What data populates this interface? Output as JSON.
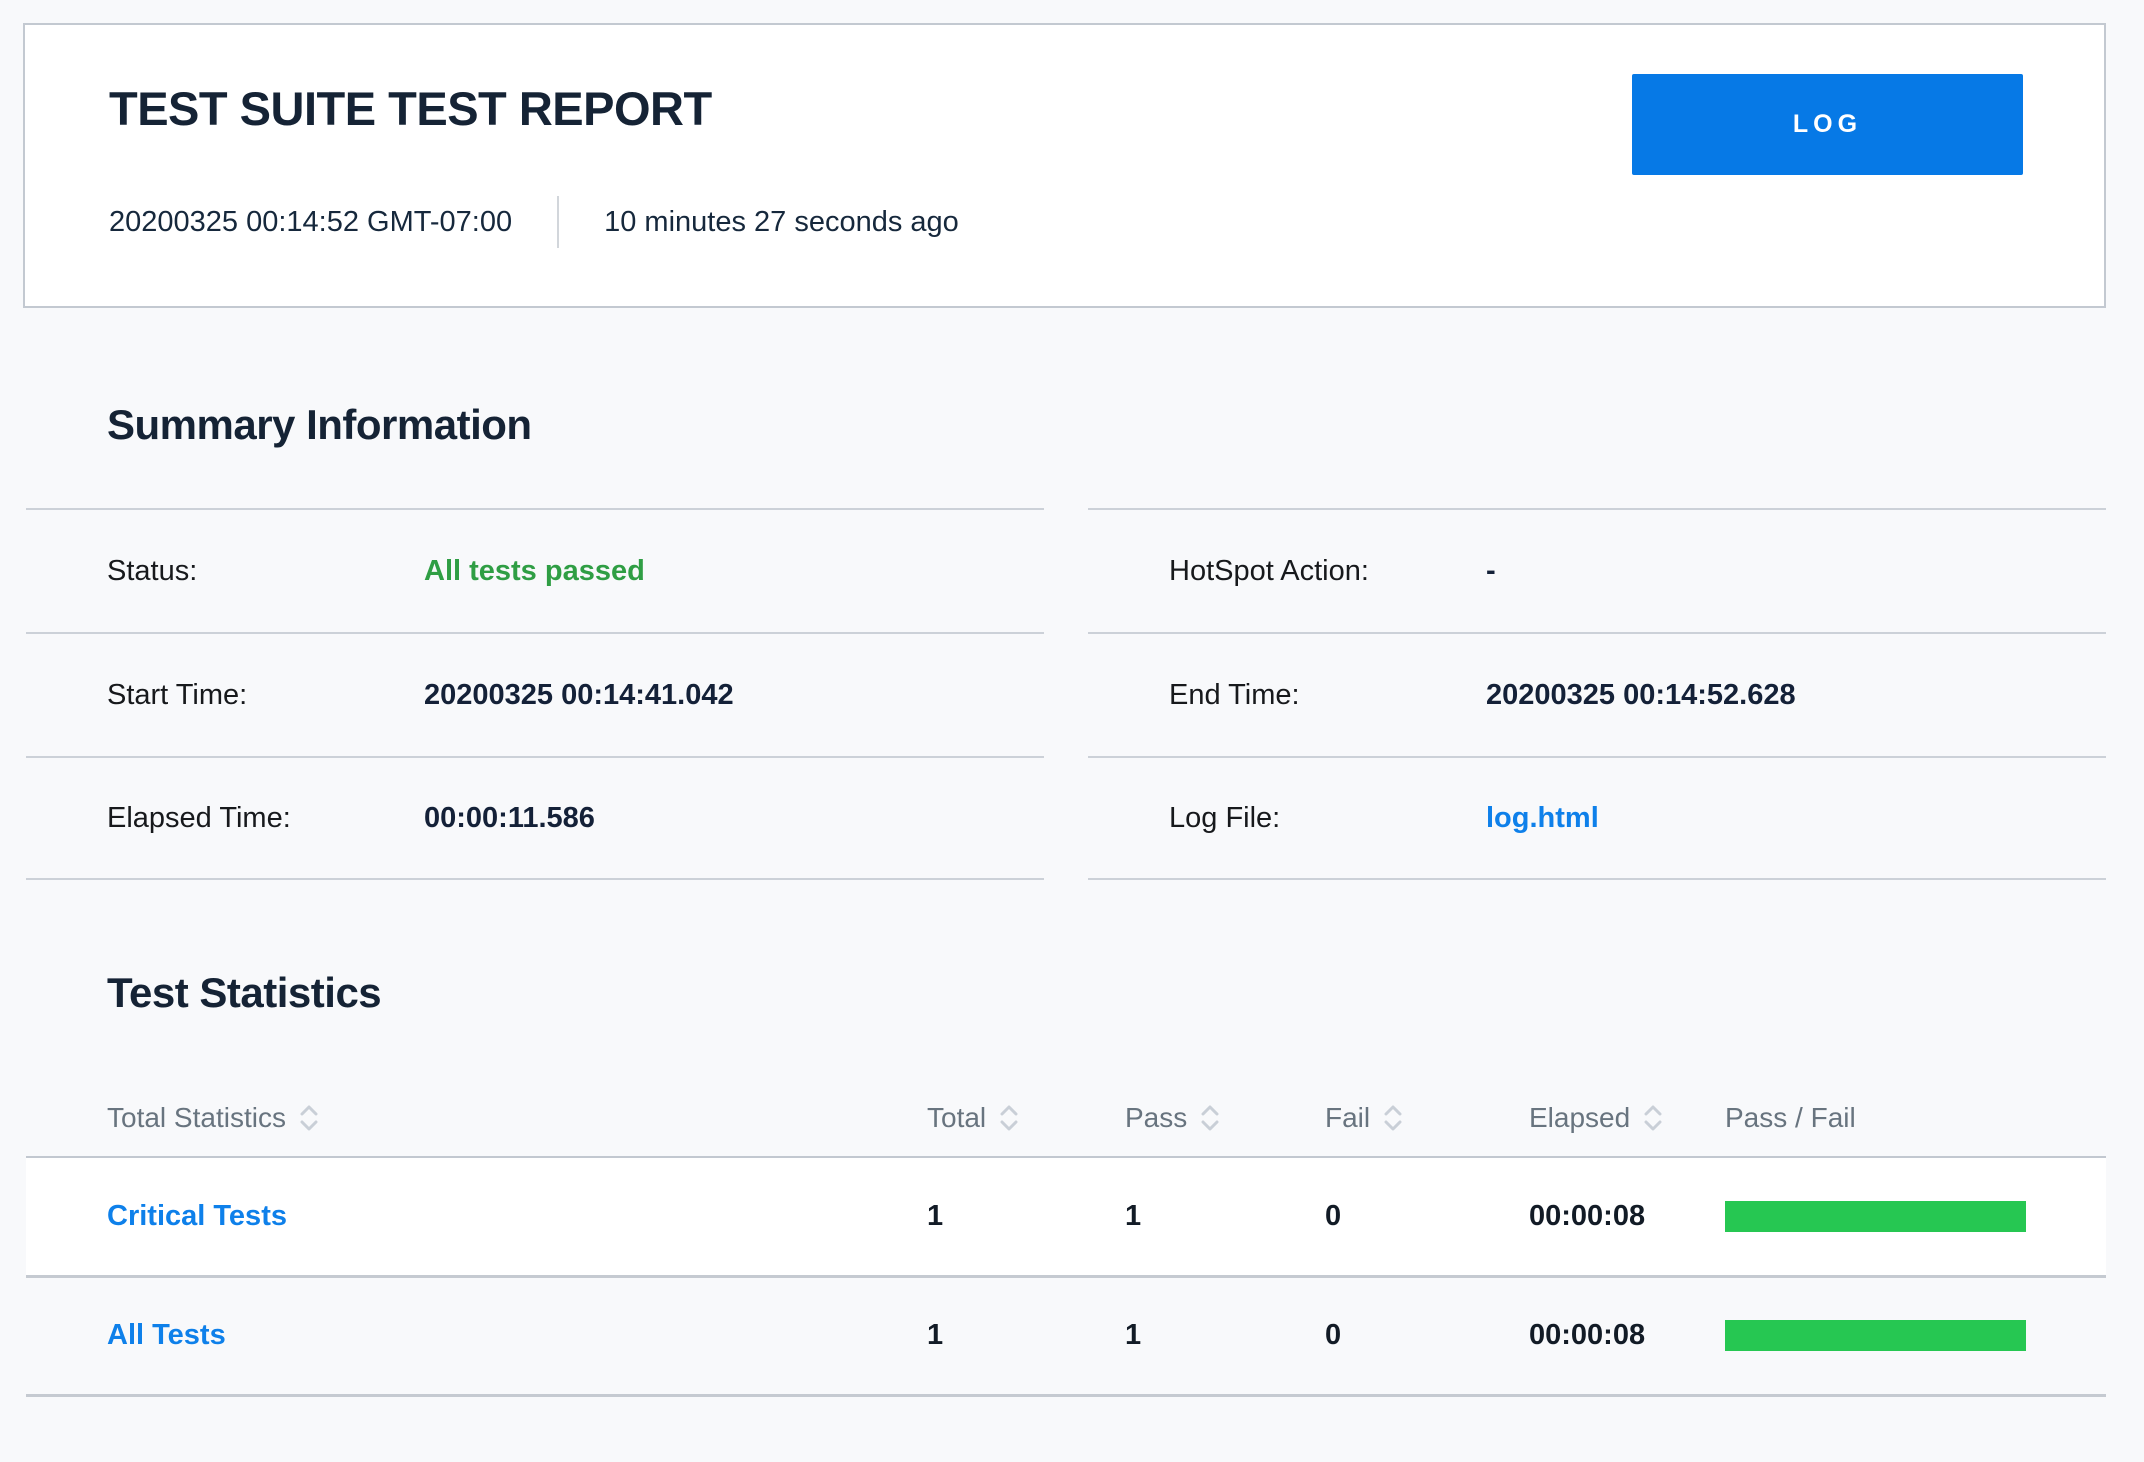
{
  "header": {
    "title": "TEST SUITE TEST REPORT",
    "log_button_label": "LOG",
    "generated_timestamp": "20200325 00:14:52 GMT-07:00",
    "generated_relative_time": "10 minutes 27 seconds ago"
  },
  "summary": {
    "heading": "Summary Information",
    "left_rows": [
      {
        "label": "Status:",
        "value": "All tests passed"
      },
      {
        "label": "Start Time:",
        "value": "20200325 00:14:41.042"
      },
      {
        "label": "Elapsed Time:",
        "value": "00:00:11.586"
      }
    ],
    "right_rows": [
      {
        "label": "HotSpot Action:",
        "value": "-"
      },
      {
        "label": "End Time:",
        "value": "20200325 00:14:52.628"
      },
      {
        "label": "Log File:",
        "value": "log.html"
      }
    ]
  },
  "statistics": {
    "heading": "Test Statistics",
    "columns": {
      "name": "Total Statistics",
      "total": "Total",
      "pass": "Pass",
      "fail": "Fail",
      "elapsed": "Elapsed",
      "graph": "Pass / Fail"
    },
    "rows": [
      {
        "name": "Critical Tests",
        "total": "1",
        "pass": "1",
        "fail": "0",
        "elapsed": "00:00:08",
        "pass_pct": 100,
        "fail_pct": 0
      },
      {
        "name": "All Tests",
        "total": "1",
        "pass": "1",
        "fail": "0",
        "elapsed": "00:00:08",
        "pass_pct": 100,
        "fail_pct": 0
      }
    ]
  },
  "icons": {
    "sort": "sort-chevrons-icon"
  },
  "colors": {
    "page_bg": "#f8f9fb",
    "card_bg": "#ffffff",
    "card_border": "#c3c9d1",
    "heading_text": "#152335",
    "label_text": "#17191c",
    "muted_header_text": "#68747f",
    "separator": "#ccd1d8",
    "button_blue": "#0679e6",
    "link_blue": "#0e80ea",
    "status_pass_green": "#2f9e44",
    "bar_pass_green": "#26c752",
    "bar_fail_red": "#dd4a4a"
  }
}
